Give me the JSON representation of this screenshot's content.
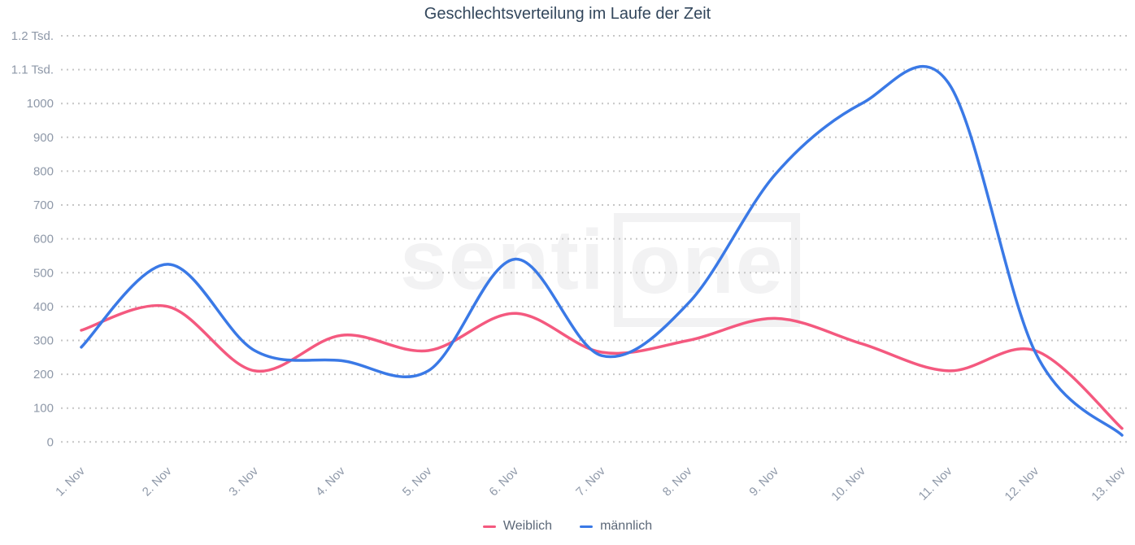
{
  "chart_data": {
    "type": "line",
    "title": "Geschlechtsverteilung im Laufe der Zeit",
    "categories": [
      "1. Nov",
      "2. Nov",
      "3. Nov",
      "4. Nov",
      "5. Nov",
      "6. Nov",
      "7. Nov",
      "8. Nov",
      "9. Nov",
      "10. Nov",
      "11. Nov",
      "12. Nov",
      "13. Nov"
    ],
    "series": [
      {
        "name": "Weiblich",
        "color": "#f4597f",
        "values": [
          330,
          400,
          210,
          315,
          270,
          380,
          265,
          300,
          365,
          290,
          210,
          270,
          40
        ]
      },
      {
        "name": "männlich",
        "color": "#3a79e6",
        "values": [
          280,
          525,
          270,
          240,
          210,
          540,
          255,
          410,
          790,
          1000,
          1060,
          265,
          20
        ]
      }
    ],
    "xlabel": "",
    "ylabel": "",
    "ylim": [
      0,
      1200
    ],
    "y_tick_step": 100,
    "y_tick_labels": [
      "0",
      "100",
      "200",
      "300",
      "400",
      "500",
      "600",
      "700",
      "800",
      "900",
      "1000",
      "1.1 Tsd.",
      "1.2 Tsd."
    ],
    "grid": "horizontal-dotted",
    "legend_position": "bottom-center",
    "smoothing": "spline"
  },
  "watermark": {
    "part1": "senti",
    "part2": "one"
  },
  "colors": {
    "title": "#33475c",
    "axis_labels": "#8e98a8",
    "gridline": "#c6c6c6",
    "legend_text": "#5c6878",
    "watermark": "#f2f2f3"
  }
}
